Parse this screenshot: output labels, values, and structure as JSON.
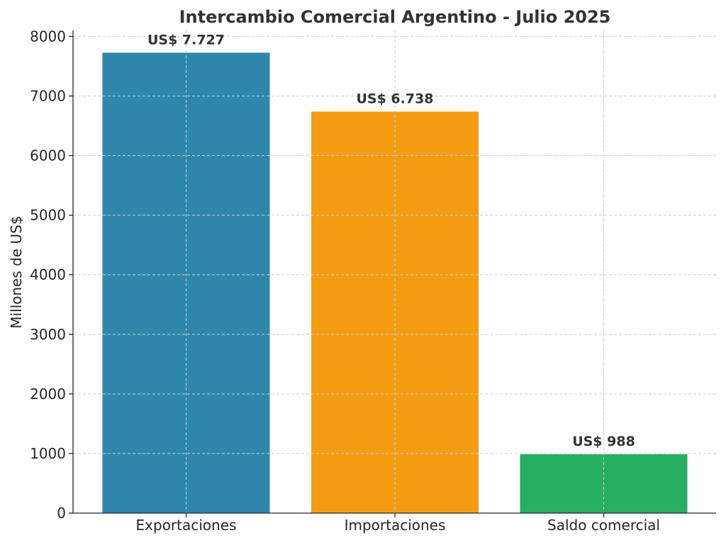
{
  "chart_data": {
    "type": "bar",
    "title": "Intercambio Comercial Argentino - Julio 2025",
    "xlabel": "",
    "ylabel": "Millones de US$",
    "categories": [
      "Exportaciones",
      "Importaciones",
      "Saldo comercial"
    ],
    "values": [
      7727,
      6738,
      988
    ],
    "data_labels": [
      "US$ 7.727",
      "US$ 6.738",
      "US$ 988"
    ],
    "colors": [
      "#2e86ab",
      "#f39c12",
      "#27ae60"
    ],
    "ylim": [
      0,
      8100
    ],
    "yticks": [
      0,
      1000,
      2000,
      3000,
      4000,
      5000,
      6000,
      7000,
      8000
    ],
    "grid": true
  }
}
